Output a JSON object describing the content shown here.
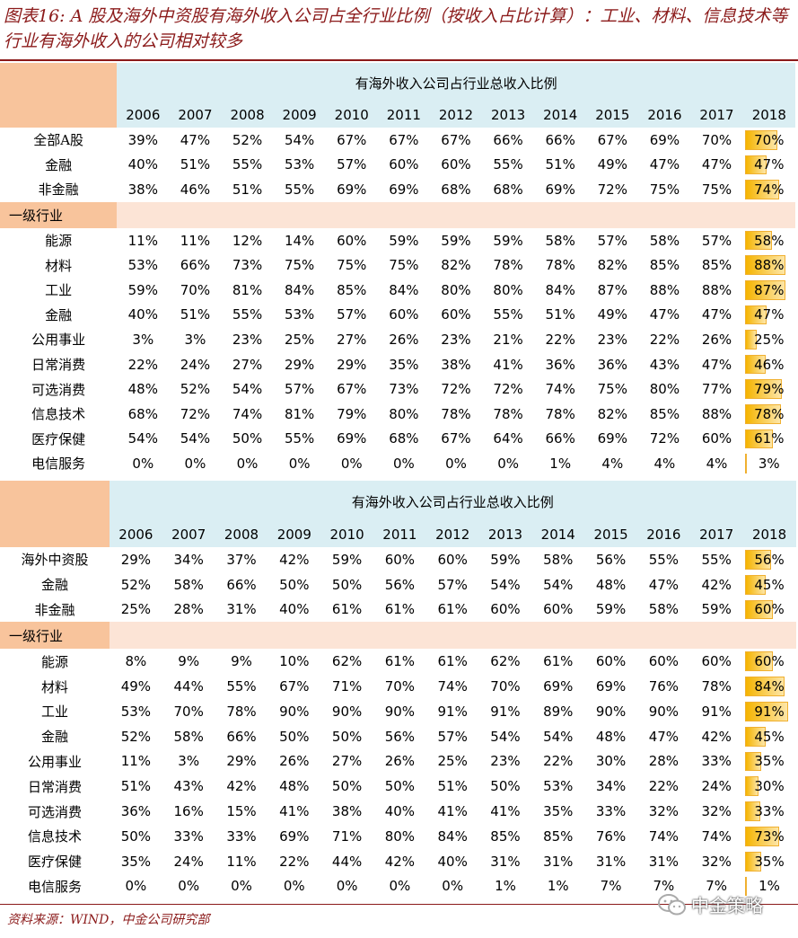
{
  "title": "图表16: A 股及海外中资股有海外收入公司占全行业比例（按收入占比计算）：工业、材料、信息技术等行业有海外收入的公司相对较多",
  "source": "资料来源：WIND，中金公司研究部",
  "watermark": "中金策略",
  "colors": {
    "accent": "#8b1a1a",
    "header": "#daeef3",
    "corner": "#f8c49c",
    "bar": "#f5b400"
  },
  "tables": [
    {
      "header": "有海外收入公司占行业总收入比例",
      "years": [
        "2006",
        "2007",
        "2008",
        "2009",
        "2010",
        "2011",
        "2012",
        "2013",
        "2014",
        "2015",
        "2016",
        "2017",
        "2018"
      ],
      "top_rows": [
        {
          "label": "全部A股",
          "values": [
            "39%",
            "47%",
            "52%",
            "54%",
            "67%",
            "67%",
            "67%",
            "66%",
            "66%",
            "67%",
            "69%",
            "70%",
            "70%"
          ]
        },
        {
          "label": "金融",
          "values": [
            "40%",
            "51%",
            "55%",
            "53%",
            "57%",
            "60%",
            "60%",
            "55%",
            "51%",
            "49%",
            "47%",
            "47%",
            "47%"
          ]
        },
        {
          "label": "非金融",
          "values": [
            "38%",
            "46%",
            "51%",
            "55%",
            "69%",
            "69%",
            "68%",
            "68%",
            "69%",
            "72%",
            "75%",
            "75%",
            "74%"
          ]
        }
      ],
      "section": "一级行业",
      "industry_rows": [
        {
          "label": "能源",
          "values": [
            "11%",
            "11%",
            "12%",
            "14%",
            "60%",
            "59%",
            "59%",
            "59%",
            "58%",
            "57%",
            "58%",
            "57%",
            "58%"
          ]
        },
        {
          "label": "材料",
          "values": [
            "53%",
            "66%",
            "73%",
            "75%",
            "75%",
            "75%",
            "82%",
            "78%",
            "78%",
            "82%",
            "85%",
            "85%",
            "88%"
          ]
        },
        {
          "label": "工业",
          "values": [
            "59%",
            "70%",
            "81%",
            "84%",
            "85%",
            "84%",
            "80%",
            "80%",
            "84%",
            "87%",
            "88%",
            "88%",
            "87%"
          ]
        },
        {
          "label": "金融",
          "values": [
            "40%",
            "51%",
            "55%",
            "53%",
            "57%",
            "60%",
            "60%",
            "55%",
            "51%",
            "49%",
            "47%",
            "47%",
            "47%"
          ]
        },
        {
          "label": "公用事业",
          "values": [
            "3%",
            "3%",
            "23%",
            "25%",
            "27%",
            "26%",
            "23%",
            "21%",
            "22%",
            "23%",
            "22%",
            "26%",
            "25%"
          ]
        },
        {
          "label": "日常消费",
          "values": [
            "22%",
            "24%",
            "27%",
            "29%",
            "29%",
            "35%",
            "38%",
            "41%",
            "36%",
            "36%",
            "43%",
            "47%",
            "46%"
          ]
        },
        {
          "label": "可选消费",
          "values": [
            "48%",
            "52%",
            "54%",
            "57%",
            "67%",
            "73%",
            "72%",
            "72%",
            "74%",
            "75%",
            "80%",
            "77%",
            "79%"
          ]
        },
        {
          "label": "信息技术",
          "values": [
            "68%",
            "72%",
            "74%",
            "81%",
            "79%",
            "80%",
            "78%",
            "78%",
            "78%",
            "82%",
            "85%",
            "88%",
            "78%"
          ]
        },
        {
          "label": "医疗保健",
          "values": [
            "54%",
            "54%",
            "50%",
            "55%",
            "69%",
            "68%",
            "67%",
            "64%",
            "66%",
            "69%",
            "72%",
            "60%",
            "61%"
          ]
        },
        {
          "label": "电信服务",
          "values": [
            "0%",
            "0%",
            "0%",
            "0%",
            "0%",
            "0%",
            "0%",
            "0%",
            "1%",
            "4%",
            "4%",
            "4%",
            "3%"
          ]
        }
      ]
    },
    {
      "header": "有海外收入公司占行业总收入比例",
      "years": [
        "2006",
        "2007",
        "2008",
        "2009",
        "2010",
        "2011",
        "2012",
        "2013",
        "2014",
        "2015",
        "2016",
        "2017",
        "2018"
      ],
      "top_rows": [
        {
          "label": "海外中资股",
          "values": [
            "29%",
            "34%",
            "37%",
            "42%",
            "59%",
            "60%",
            "60%",
            "59%",
            "58%",
            "56%",
            "55%",
            "55%",
            "56%"
          ]
        },
        {
          "label": "金融",
          "values": [
            "52%",
            "58%",
            "66%",
            "50%",
            "50%",
            "56%",
            "57%",
            "54%",
            "54%",
            "48%",
            "47%",
            "42%",
            "45%"
          ]
        },
        {
          "label": "非金融",
          "values": [
            "25%",
            "28%",
            "31%",
            "40%",
            "61%",
            "61%",
            "61%",
            "60%",
            "60%",
            "59%",
            "58%",
            "59%",
            "60%"
          ]
        }
      ],
      "section": "一级行业",
      "industry_rows": [
        {
          "label": "能源",
          "values": [
            "8%",
            "9%",
            "9%",
            "10%",
            "62%",
            "61%",
            "61%",
            "62%",
            "61%",
            "60%",
            "60%",
            "60%",
            "60%"
          ]
        },
        {
          "label": "材料",
          "values": [
            "49%",
            "44%",
            "55%",
            "67%",
            "71%",
            "70%",
            "74%",
            "70%",
            "69%",
            "69%",
            "76%",
            "78%",
            "84%"
          ]
        },
        {
          "label": "工业",
          "values": [
            "53%",
            "70%",
            "78%",
            "90%",
            "90%",
            "90%",
            "91%",
            "91%",
            "89%",
            "90%",
            "90%",
            "91%",
            "91%"
          ]
        },
        {
          "label": "金融",
          "values": [
            "52%",
            "58%",
            "66%",
            "50%",
            "50%",
            "56%",
            "57%",
            "54%",
            "54%",
            "48%",
            "47%",
            "42%",
            "45%"
          ]
        },
        {
          "label": "公用事业",
          "values": [
            "11%",
            "3%",
            "29%",
            "26%",
            "27%",
            "26%",
            "25%",
            "23%",
            "22%",
            "30%",
            "28%",
            "33%",
            "35%"
          ]
        },
        {
          "label": "日常消费",
          "values": [
            "51%",
            "43%",
            "42%",
            "48%",
            "50%",
            "50%",
            "51%",
            "50%",
            "53%",
            "34%",
            "22%",
            "24%",
            "30%"
          ]
        },
        {
          "label": "可选消费",
          "values": [
            "36%",
            "16%",
            "15%",
            "41%",
            "38%",
            "40%",
            "41%",
            "41%",
            "35%",
            "33%",
            "32%",
            "32%",
            "33%"
          ]
        },
        {
          "label": "信息技术",
          "values": [
            "50%",
            "33%",
            "33%",
            "69%",
            "71%",
            "80%",
            "84%",
            "85%",
            "85%",
            "76%",
            "74%",
            "74%",
            "73%"
          ]
        },
        {
          "label": "医疗保健",
          "values": [
            "35%",
            "24%",
            "11%",
            "22%",
            "44%",
            "42%",
            "40%",
            "31%",
            "31%",
            "31%",
            "31%",
            "32%",
            "35%"
          ]
        },
        {
          "label": "电信服务",
          "values": [
            "0%",
            "0%",
            "0%",
            "0%",
            "0%",
            "0%",
            "0%",
            "1%",
            "1%",
            "7%",
            "7%",
            "7%",
            "1%"
          ]
        }
      ]
    }
  ]
}
